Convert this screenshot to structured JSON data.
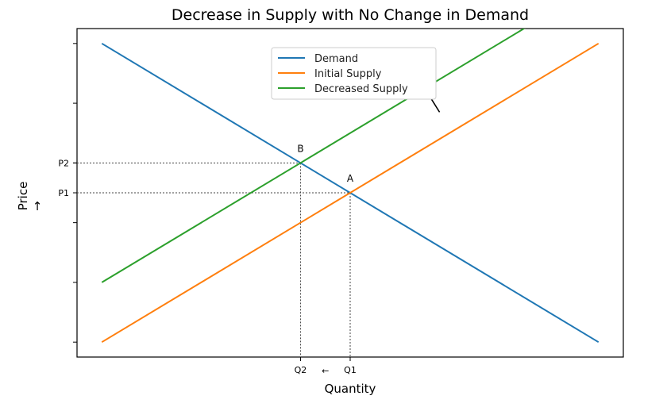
{
  "chart_data": {
    "type": "line",
    "title": "Decrease in Supply with No Change in Demand",
    "xlabel": "Quantity",
    "ylabel": "Price",
    "xlim": [
      -0.5,
      10.5
    ],
    "ylim": [
      -0.5,
      10.5
    ],
    "grid": false,
    "legend_position": "top-center",
    "x_tick_labels": {
      "shift_arrow": "←",
      "items": [
        {
          "label": "Q2",
          "x": 4.0
        },
        {
          "label": "Q1",
          "x": 5.0
        }
      ]
    },
    "y_tick_labels": {
      "shift_arrow": "↑",
      "items": [
        {
          "label": "P2",
          "y": 6.0
        },
        {
          "label": "P1",
          "y": 5.0
        }
      ]
    },
    "series": [
      {
        "name": "Demand",
        "color": "#1f77b4",
        "x": [
          0,
          10
        ],
        "y": [
          10,
          0
        ]
      },
      {
        "name": "Initial Supply",
        "color": "#ff7f0e",
        "x": [
          0,
          10
        ],
        "y": [
          0,
          10
        ]
      },
      {
        "name": "Decreased Supply",
        "color": "#2ca02c",
        "x": [
          0,
          10
        ],
        "y": [
          2,
          12
        ]
      }
    ],
    "points": [
      {
        "label": "A",
        "x": 5.0,
        "y": 5.0
      },
      {
        "label": "B",
        "x": 4.0,
        "y": 6.0
      }
    ],
    "shift_annotation": {
      "from": [
        6.8,
        7.7
      ],
      "to": [
        6.5,
        8.5
      ],
      "color": "#000000"
    }
  }
}
